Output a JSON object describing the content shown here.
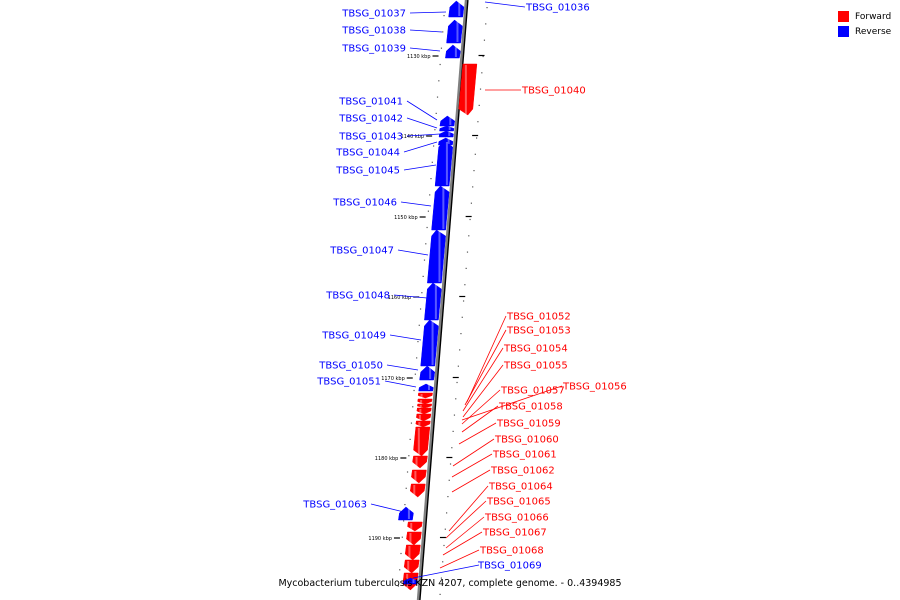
{
  "caption": "Mycobacterium tuberculosis KZN 4207, complete genome. - 0..4394985",
  "legend": [
    {
      "label": "Forward",
      "color": "#ff0000"
    },
    {
      "label": "Reverse",
      "color": "#0000ff"
    }
  ],
  "colors": {
    "forward": "#ff0000",
    "reverse": "#0000ff",
    "backbone": "#808080"
  },
  "scale_labels": [
    "1130 kbp",
    "1140 kbp",
    "1150 kbp",
    "1160 kbp",
    "1170 kbp",
    "1180 kbp",
    "1190 kbp"
  ],
  "genes": [
    {
      "name": "TBSG_01036",
      "strand": "reverse"
    },
    {
      "name": "TBSG_01037",
      "strand": "reverse"
    },
    {
      "name": "TBSG_01038",
      "strand": "reverse"
    },
    {
      "name": "TBSG_01039",
      "strand": "reverse"
    },
    {
      "name": "TBSG_01040",
      "strand": "forward"
    },
    {
      "name": "TBSG_01041",
      "strand": "reverse"
    },
    {
      "name": "TBSG_01042",
      "strand": "reverse"
    },
    {
      "name": "TBSG_01043",
      "strand": "reverse"
    },
    {
      "name": "TBSG_01044",
      "strand": "reverse"
    },
    {
      "name": "TBSG_01045",
      "strand": "reverse"
    },
    {
      "name": "TBSG_01046",
      "strand": "reverse"
    },
    {
      "name": "TBSG_01047",
      "strand": "reverse"
    },
    {
      "name": "TBSG_01048",
      "strand": "reverse"
    },
    {
      "name": "TBSG_01049",
      "strand": "reverse"
    },
    {
      "name": "TBSG_01050",
      "strand": "reverse"
    },
    {
      "name": "TBSG_01051",
      "strand": "reverse"
    },
    {
      "name": "TBSG_01052",
      "strand": "forward"
    },
    {
      "name": "TBSG_01053",
      "strand": "forward"
    },
    {
      "name": "TBSG_01054",
      "strand": "forward"
    },
    {
      "name": "TBSG_01055",
      "strand": "forward"
    },
    {
      "name": "TBSG_01056",
      "strand": "forward"
    },
    {
      "name": "TBSG_01057",
      "strand": "forward"
    },
    {
      "name": "TBSG_01058",
      "strand": "forward"
    },
    {
      "name": "TBSG_01059",
      "strand": "forward"
    },
    {
      "name": "TBSG_01060",
      "strand": "forward"
    },
    {
      "name": "TBSG_01061",
      "strand": "forward"
    },
    {
      "name": "TBSG_01062",
      "strand": "forward"
    },
    {
      "name": "TBSG_01063",
      "strand": "reverse"
    },
    {
      "name": "TBSG_01064",
      "strand": "forward"
    },
    {
      "name": "TBSG_01065",
      "strand": "forward"
    },
    {
      "name": "TBSG_01066",
      "strand": "forward"
    },
    {
      "name": "TBSG_01067",
      "strand": "forward"
    },
    {
      "name": "TBSG_01068",
      "strand": "forward"
    },
    {
      "name": "TBSG_01069",
      "strand": "reverse"
    }
  ]
}
